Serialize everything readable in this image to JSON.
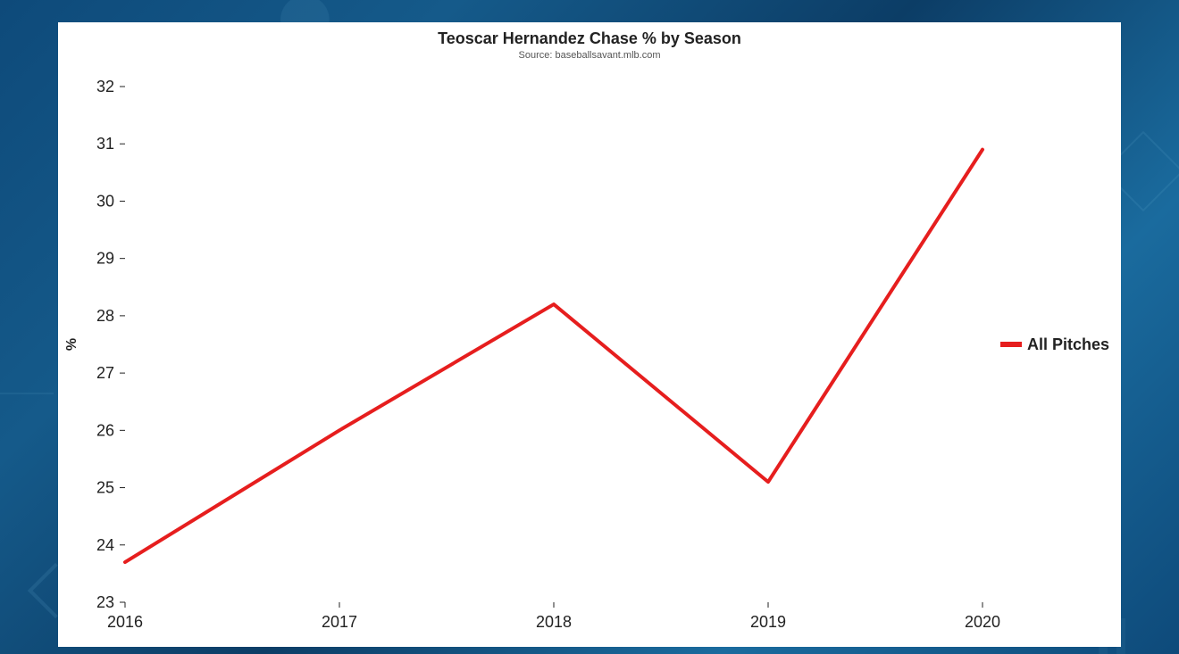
{
  "chart": {
    "type": "line",
    "title": "Teoscar Hernandez Chase % by Season",
    "subtitle": "Source: baseballsavant.mlb.com",
    "title_fontsize": 18,
    "subtitle_fontsize": 11,
    "x_values": [
      2016,
      2017,
      2018,
      2019,
      2020
    ],
    "y_values": [
      23.7,
      26.0,
      28.2,
      25.1,
      30.9
    ],
    "series_name": "All Pitches",
    "line_color": "#e61e1e",
    "line_width": 4,
    "xlim": [
      2016,
      2020
    ],
    "ylim": [
      23,
      32
    ],
    "ytick_step": 1,
    "y_ticks": [
      23,
      24,
      25,
      26,
      27,
      28,
      29,
      30,
      31,
      32
    ],
    "x_ticks": [
      2016,
      2017,
      2018,
      2019,
      2020
    ],
    "ylabel": "%",
    "ylabel_fontsize": 16,
    "tick_fontsize": 18,
    "legend_fontsize": 18,
    "background_color": "#ffffff",
    "backdrop_colors": [
      "#0e4a7a",
      "#155a8a",
      "#0c3d66",
      "#1a6b9e"
    ],
    "axis_color": "#222222",
    "tick_len": 6,
    "legend_line_width": 6,
    "legend_position": "right-middle"
  }
}
